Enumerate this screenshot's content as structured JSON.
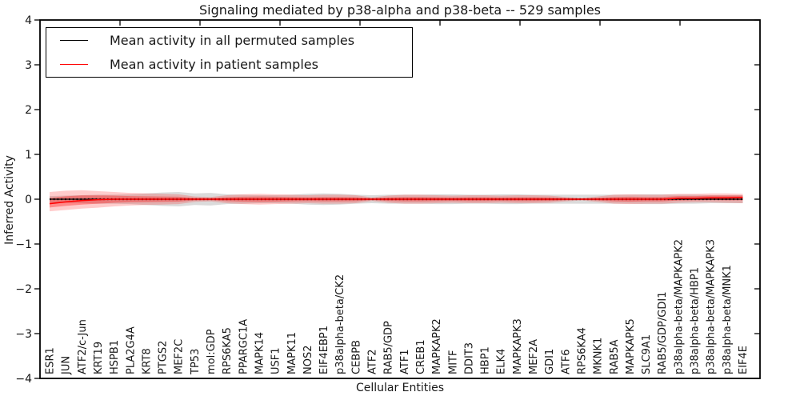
{
  "figure": {
    "title": "Signaling mediated by p38-alpha and p38-beta -- 529 samples",
    "xlabel": "Cellular Entities",
    "ylabel": "Inferred Activity"
  },
  "legend": {
    "items": [
      {
        "label": "Mean activity in all permuted samples",
        "color": "#000000"
      },
      {
        "label": "Mean activity in patient samples",
        "color": "#ff0000"
      }
    ]
  },
  "chart_data": {
    "type": "line",
    "title": "Signaling mediated by p38-alpha and p38-beta -- 529 samples",
    "xlabel": "Cellular Entities",
    "ylabel": "Inferred Activity",
    "ylim": [
      -4,
      4
    ],
    "ytick_values": [
      4,
      3,
      2,
      1,
      0,
      -1,
      -2,
      -3,
      -4
    ],
    "ytick_labels": [
      "4",
      "3",
      "2",
      "1",
      "0",
      "−1",
      "−2",
      "−3",
      "−4"
    ],
    "grid": false,
    "legend_position": "upper left",
    "categories": [
      "ESR1",
      "JUN",
      "ATF2/c-Jun",
      "KRT19",
      "HSPB1",
      "PLA2G4A",
      "KRT8",
      "PTGS2",
      "MEF2C",
      "TP53",
      "mol:GDP",
      "RPS6KA5",
      "PPARGC1A",
      "MAPK14",
      "USF1",
      "MAPK11",
      "NOS2",
      "EIF4EBP1",
      "p38alpha-beta/CK2",
      "CEBPB",
      "ATF2",
      "RAB5/GDP",
      "ATF1",
      "CREB1",
      "MAPKAPK2",
      "MITF",
      "DDIT3",
      "HBP1",
      "ELK4",
      "MAPKAPK3",
      "MEF2A",
      "GDI1",
      "ATF6",
      "RPS6KA4",
      "MKNK1",
      "RAB5A",
      "MAPKAPK5",
      "SLC9A1",
      "RAB5/GDP/GDI1",
      "p38alpha-beta/MAPKAPK2",
      "p38alpha-beta/HBP1",
      "p38alpha-beta/MAPKAPK3",
      "p38alpha-beta/MNK1",
      "EIF4E"
    ],
    "series": [
      {
        "name": "Mean activity in all permuted samples",
        "color": "#000000",
        "style": "solid-with-dot-markers",
        "values": [
          0,
          0,
          0,
          0,
          0,
          0,
          0,
          0,
          0,
          0,
          0,
          0,
          0,
          0,
          0,
          0,
          0,
          0,
          0,
          0,
          0,
          0,
          0,
          0,
          0,
          0,
          0,
          0,
          0,
          0,
          0,
          0,
          0,
          0,
          0,
          0,
          0,
          0,
          0,
          0,
          0,
          0,
          0,
          0
        ]
      },
      {
        "name": "Mean activity in patient samples",
        "color": "#ff0000",
        "style": "solid",
        "values": [
          -0.1,
          -0.06,
          -0.03,
          -0.01,
          0,
          0,
          0,
          0,
          0,
          0,
          0,
          0,
          0,
          0,
          0,
          0,
          0,
          0,
          0,
          0,
          0,
          0,
          0,
          0,
          0,
          0,
          0,
          0,
          0,
          0,
          0,
          0,
          0,
          0,
          0,
          0,
          0,
          0,
          0,
          0.02,
          0.02,
          0.03,
          0.03,
          0.04
        ]
      }
    ],
    "bands": [
      {
        "name": "permuted samples range",
        "color": "#888888",
        "opacity": 0.3,
        "lo": [
          -0.07,
          -0.08,
          -0.09,
          -0.1,
          -0.1,
          -0.11,
          -0.13,
          -0.15,
          -0.16,
          -0.13,
          -0.14,
          -0.11,
          -0.1,
          -0.09,
          -0.09,
          -0.1,
          -0.12,
          -0.13,
          -0.12,
          -0.1,
          -0.09,
          -0.1,
          -0.1,
          -0.1,
          -0.11,
          -0.11,
          -0.1,
          -0.1,
          -0.11,
          -0.11,
          -0.1,
          -0.1,
          -0.1,
          -0.1,
          -0.1,
          -0.1,
          -0.1,
          -0.11,
          -0.11,
          -0.1,
          -0.1,
          -0.09,
          -0.09,
          -0.09
        ],
        "hi": [
          0.07,
          0.08,
          0.09,
          0.1,
          0.1,
          0.11,
          0.13,
          0.15,
          0.16,
          0.13,
          0.14,
          0.11,
          0.1,
          0.09,
          0.09,
          0.1,
          0.12,
          0.13,
          0.12,
          0.1,
          0.09,
          0.1,
          0.1,
          0.1,
          0.11,
          0.11,
          0.1,
          0.1,
          0.11,
          0.11,
          0.1,
          0.1,
          0.1,
          0.1,
          0.1,
          0.1,
          0.1,
          0.11,
          0.11,
          0.1,
          0.1,
          0.09,
          0.09,
          0.09
        ]
      },
      {
        "name": "patient samples outer range",
        "color": "#ff0000",
        "opacity": 0.2,
        "lo": [
          -0.27,
          -0.24,
          -0.21,
          -0.19,
          -0.16,
          -0.14,
          -0.13,
          -0.12,
          -0.11,
          -0.06,
          -0.05,
          -0.09,
          -0.11,
          -0.12,
          -0.11,
          -0.1,
          -0.09,
          -0.1,
          -0.1,
          -0.09,
          -0.04,
          -0.08,
          -0.1,
          -0.1,
          -0.09,
          -0.08,
          -0.09,
          -0.09,
          -0.08,
          -0.09,
          -0.09,
          -0.08,
          -0.05,
          -0.03,
          -0.06,
          -0.1,
          -0.11,
          -0.1,
          -0.1,
          -0.08,
          -0.07,
          -0.07,
          -0.08,
          -0.09
        ],
        "hi": [
          0.16,
          0.19,
          0.2,
          0.18,
          0.16,
          0.14,
          0.13,
          0.12,
          0.11,
          0.06,
          0.05,
          0.09,
          0.11,
          0.12,
          0.11,
          0.1,
          0.09,
          0.1,
          0.1,
          0.09,
          0.04,
          0.08,
          0.1,
          0.1,
          0.09,
          0.08,
          0.09,
          0.09,
          0.08,
          0.09,
          0.09,
          0.08,
          0.05,
          0.03,
          0.06,
          0.1,
          0.11,
          0.1,
          0.1,
          0.12,
          0.12,
          0.13,
          0.13,
          0.12
        ]
      },
      {
        "name": "patient samples inner range",
        "color": "#ff0000",
        "opacity": 0.33,
        "lo": [
          -0.185,
          -0.15,
          -0.12,
          -0.1,
          -0.08,
          -0.07,
          -0.065,
          -0.06,
          -0.055,
          -0.03,
          -0.025,
          -0.045,
          -0.055,
          -0.06,
          -0.055,
          -0.05,
          -0.045,
          -0.05,
          -0.05,
          -0.045,
          -0.02,
          -0.04,
          -0.05,
          -0.05,
          -0.045,
          -0.04,
          -0.045,
          -0.045,
          -0.04,
          -0.045,
          -0.045,
          -0.04,
          -0.025,
          -0.015,
          -0.03,
          -0.05,
          -0.055,
          -0.05,
          -0.05,
          -0.03,
          -0.025,
          -0.02,
          -0.025,
          -0.025
        ],
        "hi": [
          0.03,
          0.065,
          0.085,
          0.085,
          0.08,
          0.07,
          0.065,
          0.06,
          0.055,
          0.03,
          0.025,
          0.045,
          0.055,
          0.06,
          0.055,
          0.05,
          0.045,
          0.05,
          0.05,
          0.045,
          0.02,
          0.04,
          0.05,
          0.05,
          0.045,
          0.04,
          0.045,
          0.045,
          0.04,
          0.045,
          0.045,
          0.04,
          0.025,
          0.015,
          0.03,
          0.05,
          0.055,
          0.05,
          0.05,
          0.07,
          0.07,
          0.08,
          0.08,
          0.08
        ]
      }
    ]
  }
}
